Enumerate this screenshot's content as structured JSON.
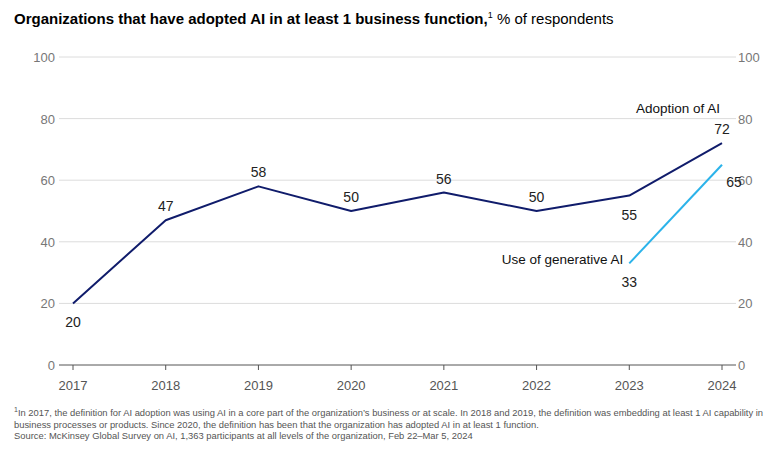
{
  "chart_data": {
    "type": "line",
    "title": "Organizations that have adopted AI in at least 1 business function,",
    "title_footnote_ref": "1",
    "subtitle": "% of respondents",
    "x": [
      2017,
      2018,
      2019,
      2020,
      2021,
      2022,
      2023,
      2024
    ],
    "xlim": [
      2017,
      2024
    ],
    "xticks": [
      2017,
      2018,
      2019,
      2020,
      2021,
      2022,
      2023,
      2024
    ],
    "ylim": [
      0,
      100
    ],
    "yticks": [
      0,
      20,
      40,
      60,
      80,
      100
    ],
    "y2lim": [
      0,
      100
    ],
    "y2ticks": [
      0,
      20,
      40,
      60,
      80,
      100
    ],
    "grid": true,
    "data_labels": true,
    "series": [
      {
        "name": "Adoption of AI",
        "color": "#101c6b",
        "values": [
          20,
          47,
          58,
          50,
          56,
          50,
          55,
          72
        ]
      },
      {
        "name": "Use of generative AI",
        "color": "#2bb3ea",
        "values": [
          null,
          null,
          null,
          null,
          null,
          null,
          33,
          65
        ]
      }
    ],
    "footnote": {
      "marker": "1",
      "text": "In 2017, the definition for AI adoption was using AI in a core part of the organization’s business or at scale. In 2018 and 2019, the definition was embedding at least 1 AI capability in business processes or products. Since 2020, the definition has been that the organization has adopted AI in at least 1 function."
    },
    "source": "Source: McKinsey Global Survey on AI, 1,363 participants at all levels of the organization, Feb 22–Mar 5, 2024"
  }
}
